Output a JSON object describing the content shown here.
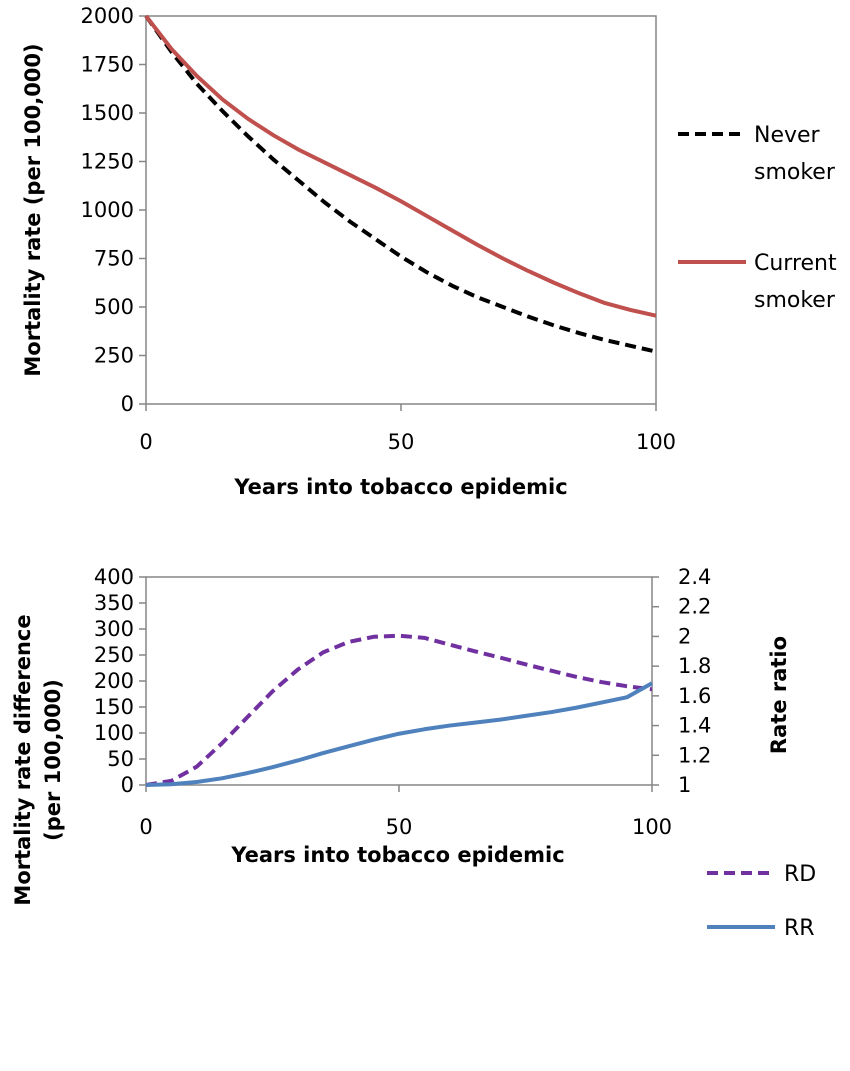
{
  "chart_data": [
    {
      "type": "line",
      "xlabel": "Years into tobacco epidemic",
      "ylabel": "Mortality rate (per 100,000)",
      "xlim": [
        0,
        100
      ],
      "ylim": [
        0,
        2000
      ],
      "x_ticks": [
        "0",
        "50",
        "100"
      ],
      "y_ticks": [
        "0",
        "250",
        "500",
        "750",
        "1000",
        "1250",
        "1500",
        "1750",
        "2000"
      ],
      "grid": false,
      "legend_position": "right",
      "series": [
        {
          "name": "Never smoker",
          "name_lines": [
            "Never",
            "smoker"
          ],
          "style": "dashed",
          "color": "#000000",
          "x": [
            0,
            5,
            10,
            15,
            20,
            25,
            30,
            35,
            40,
            45,
            50,
            55,
            60,
            65,
            70,
            75,
            80,
            85,
            90,
            95,
            100
          ],
          "y": [
            2000,
            1815,
            1650,
            1510,
            1380,
            1260,
            1150,
            1040,
            940,
            850,
            760,
            680,
            610,
            550,
            500,
            450,
            405,
            365,
            330,
            300,
            270
          ]
        },
        {
          "name": "Current smoker",
          "name_lines": [
            "Current",
            "smoker"
          ],
          "style": "solid",
          "color": "#c0504d",
          "x": [
            0,
            5,
            10,
            15,
            20,
            25,
            30,
            35,
            40,
            45,
            50,
            55,
            60,
            65,
            70,
            75,
            80,
            85,
            90,
            95,
            100
          ],
          "y": [
            2000,
            1830,
            1690,
            1570,
            1470,
            1385,
            1310,
            1245,
            1180,
            1115,
            1045,
            970,
            895,
            820,
            750,
            685,
            625,
            570,
            520,
            485,
            455
          ]
        }
      ]
    },
    {
      "type": "line",
      "xlabel": "Years into tobacco epidemic",
      "ylabel": "Mortality rate difference (per 100,000)",
      "ylabel_lines": [
        "Mortality rate difference",
        "(per 100,000)"
      ],
      "y2label": "Rate ratio",
      "xlim": [
        0,
        100
      ],
      "ylim": [
        0,
        400
      ],
      "y2lim": [
        1,
        2.4
      ],
      "x_ticks": [
        "0",
        "50",
        "100"
      ],
      "y_ticks": [
        "0",
        "50",
        "100",
        "150",
        "200",
        "250",
        "300",
        "350",
        "400"
      ],
      "y2_ticks": [
        "1",
        "1.2",
        "1.4",
        "1.6",
        "1.8",
        "2",
        "2.2",
        "2.4"
      ],
      "grid": false,
      "legend_position": "right",
      "series": [
        {
          "name": "RD",
          "axis": "left",
          "style": "dashed",
          "color": "#7030a0",
          "x": [
            0,
            5,
            10,
            15,
            20,
            25,
            30,
            35,
            40,
            45,
            50,
            55,
            60,
            65,
            70,
            75,
            80,
            85,
            90,
            95,
            100
          ],
          "y": [
            0,
            8,
            35,
            80,
            130,
            180,
            222,
            255,
            275,
            285,
            287,
            283,
            270,
            257,
            245,
            232,
            220,
            208,
            198,
            190,
            184
          ]
        },
        {
          "name": "RR",
          "axis": "right",
          "style": "solid",
          "color": "#4f81bd",
          "x": [
            0,
            5,
            10,
            15,
            20,
            25,
            30,
            35,
            40,
            45,
            50,
            55,
            60,
            65,
            70,
            75,
            80,
            85,
            90,
            95,
            100
          ],
          "y": [
            1.0,
            1.005,
            1.02,
            1.045,
            1.08,
            1.12,
            1.165,
            1.215,
            1.26,
            1.305,
            1.345,
            1.375,
            1.4,
            1.42,
            1.44,
            1.465,
            1.49,
            1.52,
            1.555,
            1.59,
            1.685
          ]
        }
      ]
    }
  ]
}
